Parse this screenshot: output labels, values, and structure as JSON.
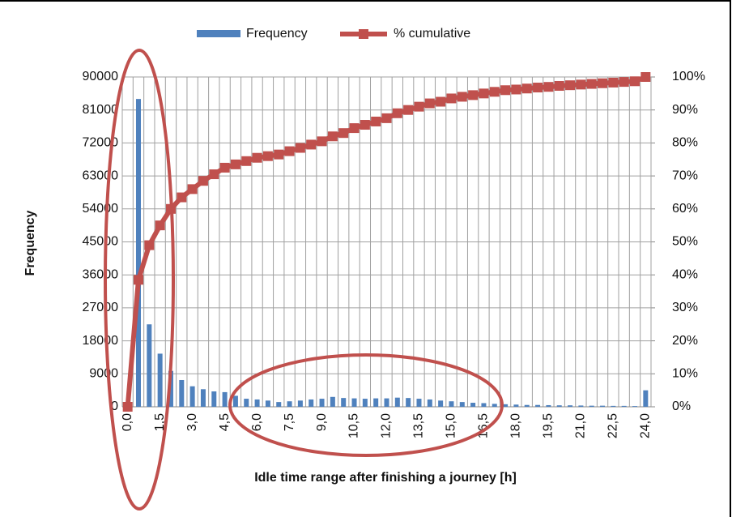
{
  "chart_data": {
    "type": "combo",
    "x_label": "Idle time range after finishing a journey [h]",
    "y_label": "Frequency",
    "legend": "top",
    "grid": true,
    "categories": [
      "0,0",
      null,
      null,
      "1,5",
      null,
      null,
      "3,0",
      null,
      null,
      "4,5",
      null,
      null,
      "6,0",
      null,
      null,
      "7,5",
      null,
      null,
      "9,0",
      null,
      null,
      "10,5",
      null,
      null,
      "12,0",
      null,
      null,
      "13,5",
      null,
      null,
      "15,0",
      null,
      null,
      "16,5",
      null,
      null,
      "18,0",
      null,
      null,
      "19,5",
      null,
      null,
      "21,0",
      null,
      null,
      "22,5",
      null,
      null,
      "24,0"
    ],
    "ylim": [
      0,
      90000
    ],
    "yticks": [
      0,
      9000,
      18000,
      27000,
      36000,
      45000,
      54000,
      63000,
      72000,
      81000,
      90000
    ],
    "y2lim": [
      0,
      100
    ],
    "y2ticks": [
      {
        "value": 0,
        "label": "0%"
      },
      {
        "value": 10,
        "label": "10%"
      },
      {
        "value": 20,
        "label": "20%"
      },
      {
        "value": 30,
        "label": "30%"
      },
      {
        "value": 40,
        "label": "40%"
      },
      {
        "value": 50,
        "label": "50%"
      },
      {
        "value": 60,
        "label": "60%"
      },
      {
        "value": 70,
        "label": "70%"
      },
      {
        "value": 80,
        "label": "80%"
      },
      {
        "value": 90,
        "label": "90%"
      },
      {
        "value": 100,
        "label": "100%"
      }
    ],
    "series": [
      {
        "name": "Frequency",
        "type": "bar",
        "color": "#4f81bd",
        "values": [
          0,
          84000,
          22500,
          14500,
          9800,
          7300,
          5600,
          4800,
          4200,
          4000,
          3000,
          2200,
          2000,
          1700,
          1300,
          1500,
          1700,
          2000,
          2200,
          2700,
          2400,
          2300,
          2200,
          2300,
          2300,
          2500,
          2400,
          2200,
          2000,
          1700,
          1500,
          1300,
          1100,
          1000,
          800,
          700,
          600,
          500,
          500,
          450,
          400,
          400,
          350,
          300,
          300,
          250,
          250,
          200,
          4500
        ]
      },
      {
        "name": "% cumulative",
        "type": "line",
        "axis": "y2",
        "color": "#c0504d",
        "values": [
          0,
          38.5,
          49,
          55,
          60,
          63.5,
          66,
          68.5,
          70.5,
          72.5,
          73.5,
          74.5,
          75.5,
          76,
          76.5,
          77.5,
          78.5,
          79.5,
          80.5,
          82,
          83,
          84.5,
          85.5,
          86.5,
          87.5,
          89,
          90,
          91,
          92,
          92.5,
          93.5,
          94,
          94.5,
          95,
          95.5,
          96,
          96.2,
          96.5,
          96.8,
          97,
          97.3,
          97.5,
          97.7,
          97.9,
          98.1,
          98.3,
          98.5,
          98.7,
          100
        ]
      }
    ]
  }
}
